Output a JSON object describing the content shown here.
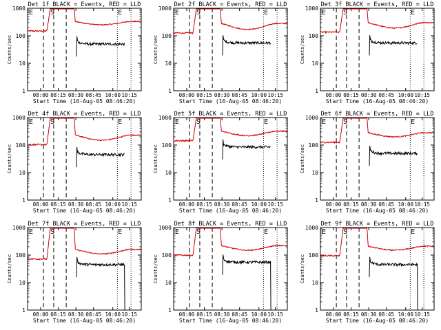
{
  "shared": {
    "ylabel": "Counts/sec",
    "xlabel": "Start Time (16-Aug-05 08:46:20)",
    "xticks": [
      "08:00",
      "08:15",
      "08:30",
      "08:45",
      "10:00",
      "10:15"
    ],
    "yticks": [
      "1",
      "10",
      "100",
      "1000"
    ],
    "markers": {
      "E1": "E",
      "S": "S",
      "E2": "E"
    },
    "colors": {
      "events": "#000000",
      "lld": "#d00000"
    }
  },
  "chart_data": [
    {
      "type": "line",
      "title": "Det 1f BLACK = Events, RED = LLD",
      "ylim": [
        1,
        1000
      ],
      "yscale": "log",
      "series": [
        {
          "name": "BLACK = Events",
          "color": "#000000",
          "level": 50,
          "dropout": false
        },
        {
          "name": "RED = LLD",
          "color": "#d00000",
          "level": 330,
          "peak": 1000,
          "dip": 250
        }
      ]
    },
    {
      "type": "line",
      "title": "Det 2f BLACK = Events, RED = LLD",
      "ylim": [
        1,
        1000
      ],
      "yscale": "log",
      "series": [
        {
          "name": "BLACK = Events",
          "color": "#000000",
          "level": 55,
          "dropout": false
        },
        {
          "name": "RED = LLD",
          "color": "#d00000",
          "level": 280,
          "peak": 1000,
          "dip": 170
        }
      ]
    },
    {
      "type": "line",
      "title": "Det 3f BLACK = Events, RED = LLD",
      "ylim": [
        1,
        1000
      ],
      "yscale": "log",
      "series": [
        {
          "name": "BLACK = Events",
          "color": "#000000",
          "level": 55,
          "dropout": false
        },
        {
          "name": "RED = LLD",
          "color": "#d00000",
          "level": 300,
          "peak": 1000,
          "dip": 190
        }
      ]
    },
    {
      "type": "line",
      "title": "Det 4f BLACK = Events, RED = LLD",
      "ylim": [
        1,
        1000
      ],
      "yscale": "log",
      "series": [
        {
          "name": "BLACK = Events",
          "color": "#000000",
          "level": 45,
          "dropout": false
        },
        {
          "name": "RED = LLD",
          "color": "#d00000",
          "level": 230,
          "peak": 1000,
          "dip": 150
        }
      ]
    },
    {
      "type": "line",
      "title": "Det 5f BLACK = Events, RED = LLD",
      "ylim": [
        1,
        1000
      ],
      "yscale": "log",
      "series": [
        {
          "name": "BLACK = Events",
          "color": "#000000",
          "level": 85,
          "dropout": false
        },
        {
          "name": "RED = LLD",
          "color": "#d00000",
          "level": 320,
          "peak": 1000,
          "dip": 220
        }
      ]
    },
    {
      "type": "line",
      "title": "Det 6f BLACK = Events, RED = LLD",
      "ylim": [
        1,
        1000
      ],
      "yscale": "log",
      "series": [
        {
          "name": "BLACK = Events",
          "color": "#000000",
          "level": 50,
          "dropout": false
        },
        {
          "name": "RED = LLD",
          "color": "#d00000",
          "level": 280,
          "peak": 1000,
          "dip": 200
        }
      ]
    },
    {
      "type": "line",
      "title": "Det 7f BLACK = Events, RED = LLD",
      "ylim": [
        1,
        1000
      ],
      "yscale": "log",
      "series": [
        {
          "name": "BLACK = Events",
          "color": "#000000",
          "level": 45,
          "dropout": true
        },
        {
          "name": "RED = LLD",
          "color": "#d00000",
          "level": 160,
          "peak": 1000,
          "dip": 110
        }
      ]
    },
    {
      "type": "line",
      "title": "Det 8f BLACK = Events, RED = LLD",
      "ylim": [
        1,
        1000
      ],
      "yscale": "log",
      "series": [
        {
          "name": "BLACK = Events",
          "color": "#000000",
          "level": 55,
          "dropout": true
        },
        {
          "name": "RED = LLD",
          "color": "#d00000",
          "level": 220,
          "peak": 1000,
          "dip": 150
        }
      ]
    },
    {
      "type": "line",
      "title": "Det 9f BLACK = Events, RED = LLD",
      "ylim": [
        1,
        1000
      ],
      "yscale": "log",
      "series": [
        {
          "name": "BLACK = Events",
          "color": "#000000",
          "level": 45,
          "dropout": true
        },
        {
          "name": "RED = LLD",
          "color": "#d00000",
          "level": 210,
          "peak": 1000,
          "dip": 150
        }
      ]
    }
  ]
}
